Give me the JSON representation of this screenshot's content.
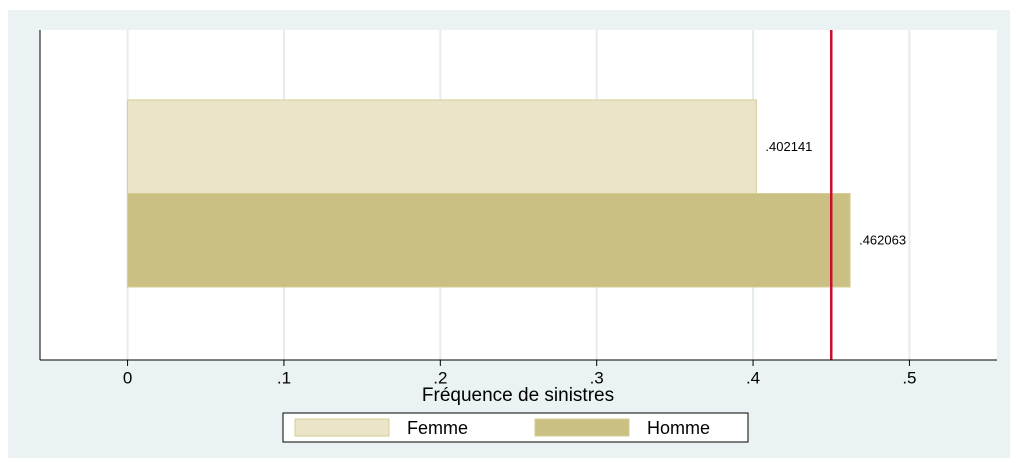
{
  "chart_data": {
    "type": "bar",
    "orientation": "horizontal",
    "x_label": "Fréquence de sinistres",
    "series": [
      {
        "name": "Femme",
        "color": "#eae5c8",
        "values": [
          0.402141
        ],
        "value_labels": [
          ".402141"
        ]
      },
      {
        "name": "Homme",
        "color": "#cbc083",
        "values": [
          0.462063
        ],
        "value_labels": [
          ".462063"
        ]
      }
    ],
    "xlim": [
      -0.056,
      0.556
    ],
    "xticks": [
      0,
      {
        "value": 0.1,
        "label": ".1"
      },
      {
        "value": 0.2,
        "label": ".2"
      },
      {
        "value": 0.3,
        "label": ".3"
      },
      {
        "value": 0.4,
        "label": ".4"
      },
      {
        "value": 0.5,
        "label": ".5"
      }
    ],
    "grid": true,
    "reference_line": {
      "value": 0.45,
      "color": "#c8102e"
    },
    "legend": "bottom"
  }
}
